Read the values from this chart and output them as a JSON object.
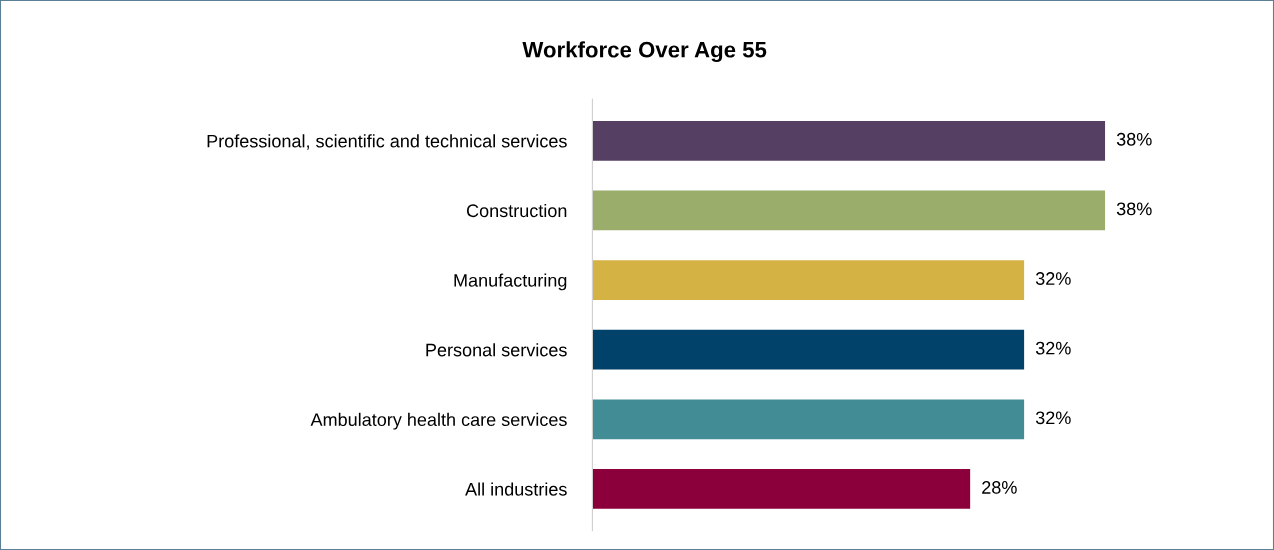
{
  "chart_data": {
    "type": "bar",
    "orientation": "horizontal",
    "title": "Workforce Over Age 55",
    "categories": [
      "Professional, scientific and technical services",
      "Construction",
      "Manufacturing",
      "Personal services",
      "Ambulatory health care services",
      "All industries"
    ],
    "values": [
      38,
      38,
      32,
      32,
      32,
      28
    ],
    "colors": [
      "#553f63",
      "#9aad6b",
      "#d4b244",
      "#00426a",
      "#428c96",
      "#8b003b"
    ],
    "value_labels": [
      "38%",
      "38%",
      "32%",
      "32%",
      "32%",
      "28%"
    ],
    "grid": false,
    "legend": false
  }
}
